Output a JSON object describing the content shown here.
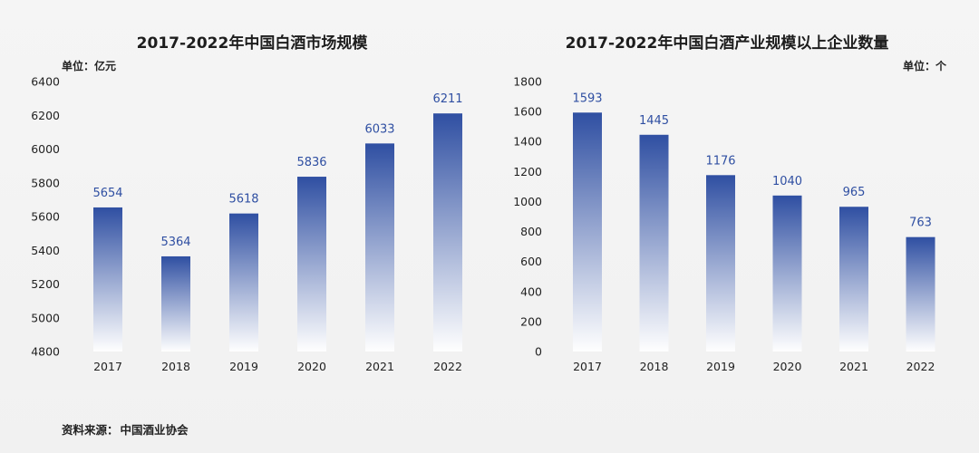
{
  "source": {
    "label": "资料来源：",
    "value": "中国酒业协会"
  },
  "chart_data": [
    {
      "type": "bar",
      "title": "2017-2022年中国白酒市场规模",
      "unit": "单位：亿元",
      "categories": [
        "2017",
        "2018",
        "2019",
        "2020",
        "2021",
        "2022"
      ],
      "values": [
        5654,
        5364,
        5618,
        5836,
        6033,
        6211
      ],
      "ylim": [
        4800,
        6400
      ],
      "yticks": [
        4800,
        5000,
        5200,
        5400,
        5600,
        5800,
        6000,
        6200,
        6400
      ],
      "grid": false,
      "bar_color_top": "#2f4fa2",
      "bar_color_bottom": "#ffffff",
      "label_color": "#2f4fa2"
    },
    {
      "type": "bar",
      "title": "2017-2022年中国白酒产业规模以上企业数量",
      "unit": "单位：个",
      "categories": [
        "2017",
        "2018",
        "2019",
        "2020",
        "2021",
        "2022"
      ],
      "values": [
        1593,
        1445,
        1176,
        1040,
        965,
        763
      ],
      "ylim": [
        0,
        1800
      ],
      "yticks": [
        0,
        200,
        400,
        600,
        800,
        1000,
        1200,
        1400,
        1600,
        1800
      ],
      "grid": false,
      "bar_color_top": "#2f4fa2",
      "bar_color_bottom": "#ffffff",
      "label_color": "#2f4fa2"
    }
  ]
}
